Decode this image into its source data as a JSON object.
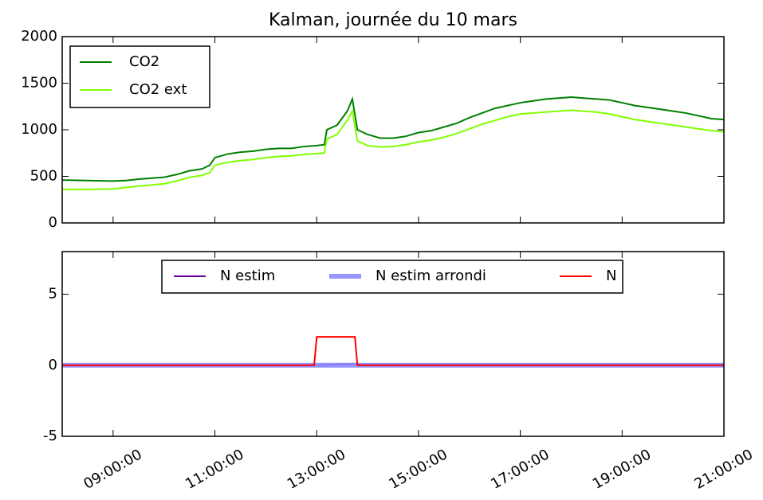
{
  "title": "Kalman, journée du 10 mars",
  "chart_data": [
    {
      "type": "line",
      "xlim": [
        8,
        21
      ],
      "ylim": [
        0,
        2000
      ],
      "yticks": [
        0,
        500,
        1000,
        1500,
        2000
      ],
      "legend": "upper left",
      "series": [
        {
          "name": "CO2",
          "color": "#007f00",
          "x": [
            8,
            8.5,
            9,
            9.25,
            9.5,
            10,
            10.25,
            10.5,
            10.75,
            10.9,
            11,
            11.25,
            11.5,
            11.75,
            12,
            12.25,
            12.5,
            12.75,
            13,
            13.15,
            13.2,
            13.4,
            13.6,
            13.7,
            13.8,
            14,
            14.25,
            14.5,
            14.75,
            15,
            15.25,
            15.5,
            15.75,
            16,
            16.25,
            16.5,
            16.75,
            17,
            17.25,
            17.5,
            17.75,
            18,
            18.25,
            18.5,
            18.75,
            19,
            19.25,
            19.5,
            19.75,
            20,
            20.25,
            20.5,
            20.75,
            21
          ],
          "values": [
            460,
            455,
            450,
            455,
            470,
            490,
            520,
            560,
            580,
            620,
            700,
            740,
            760,
            770,
            790,
            800,
            800,
            820,
            830,
            840,
            1000,
            1050,
            1200,
            1330,
            1000,
            950,
            910,
            910,
            930,
            970,
            990,
            1030,
            1070,
            1130,
            1180,
            1230,
            1260,
            1290,
            1310,
            1330,
            1340,
            1350,
            1340,
            1330,
            1320,
            1290,
            1260,
            1240,
            1220,
            1200,
            1180,
            1150,
            1120,
            1110
          ]
        },
        {
          "name": "CO2 ext",
          "color": "#7fff00",
          "x": [
            8,
            8.5,
            9,
            9.25,
            9.5,
            10,
            10.25,
            10.5,
            10.75,
            10.9,
            11,
            11.25,
            11.5,
            11.75,
            12,
            12.25,
            12.5,
            12.75,
            13,
            13.15,
            13.2,
            13.4,
            13.6,
            13.7,
            13.8,
            14,
            14.25,
            14.5,
            14.75,
            15,
            15.25,
            15.5,
            15.75,
            16,
            16.25,
            16.5,
            16.75,
            17,
            17.25,
            17.5,
            17.75,
            18,
            18.25,
            18.5,
            18.75,
            19,
            19.25,
            19.5,
            19.75,
            20,
            20.25,
            20.5,
            20.75,
            21
          ],
          "values": [
            360,
            360,
            365,
            380,
            395,
            420,
            450,
            490,
            510,
            540,
            620,
            650,
            670,
            680,
            700,
            715,
            720,
            735,
            745,
            750,
            900,
            950,
            1100,
            1200,
            880,
            830,
            815,
            820,
            840,
            870,
            890,
            920,
            960,
            1010,
            1060,
            1100,
            1140,
            1170,
            1180,
            1190,
            1200,
            1210,
            1200,
            1190,
            1170,
            1140,
            1110,
            1090,
            1070,
            1050,
            1030,
            1010,
            990,
            980
          ]
        }
      ]
    },
    {
      "type": "line",
      "xlim": [
        8,
        21
      ],
      "ylim": [
        -5,
        8
      ],
      "yticks": [
        -5,
        0,
        5
      ],
      "legend": "upper center",
      "xticks": [
        {
          "value": 9,
          "label": "09:00:00"
        },
        {
          "value": 11,
          "label": "11:00:00"
        },
        {
          "value": 13,
          "label": "13:00:00"
        },
        {
          "value": 15,
          "label": "15:00:00"
        },
        {
          "value": 17,
          "label": "17:00:00"
        },
        {
          "value": 19,
          "label": "19:00:00"
        },
        {
          "value": 21,
          "label": "21:00:00"
        }
      ],
      "series": [
        {
          "name": "N estim",
          "color": "#660099",
          "x": [
            8,
            13,
            13.7,
            13.8,
            21
          ],
          "values": [
            0,
            0,
            0.1,
            0.05,
            0.05
          ]
        },
        {
          "name": "N estim arrondi",
          "color": "#8c8cff",
          "x": [
            8,
            21
          ],
          "values": [
            0,
            0
          ]
        },
        {
          "name": "N",
          "color": "#ff0000",
          "x": [
            8,
            12.95,
            13,
            13.75,
            13.8,
            21
          ],
          "values": [
            0,
            0,
            2,
            2,
            0,
            0
          ]
        }
      ]
    }
  ]
}
